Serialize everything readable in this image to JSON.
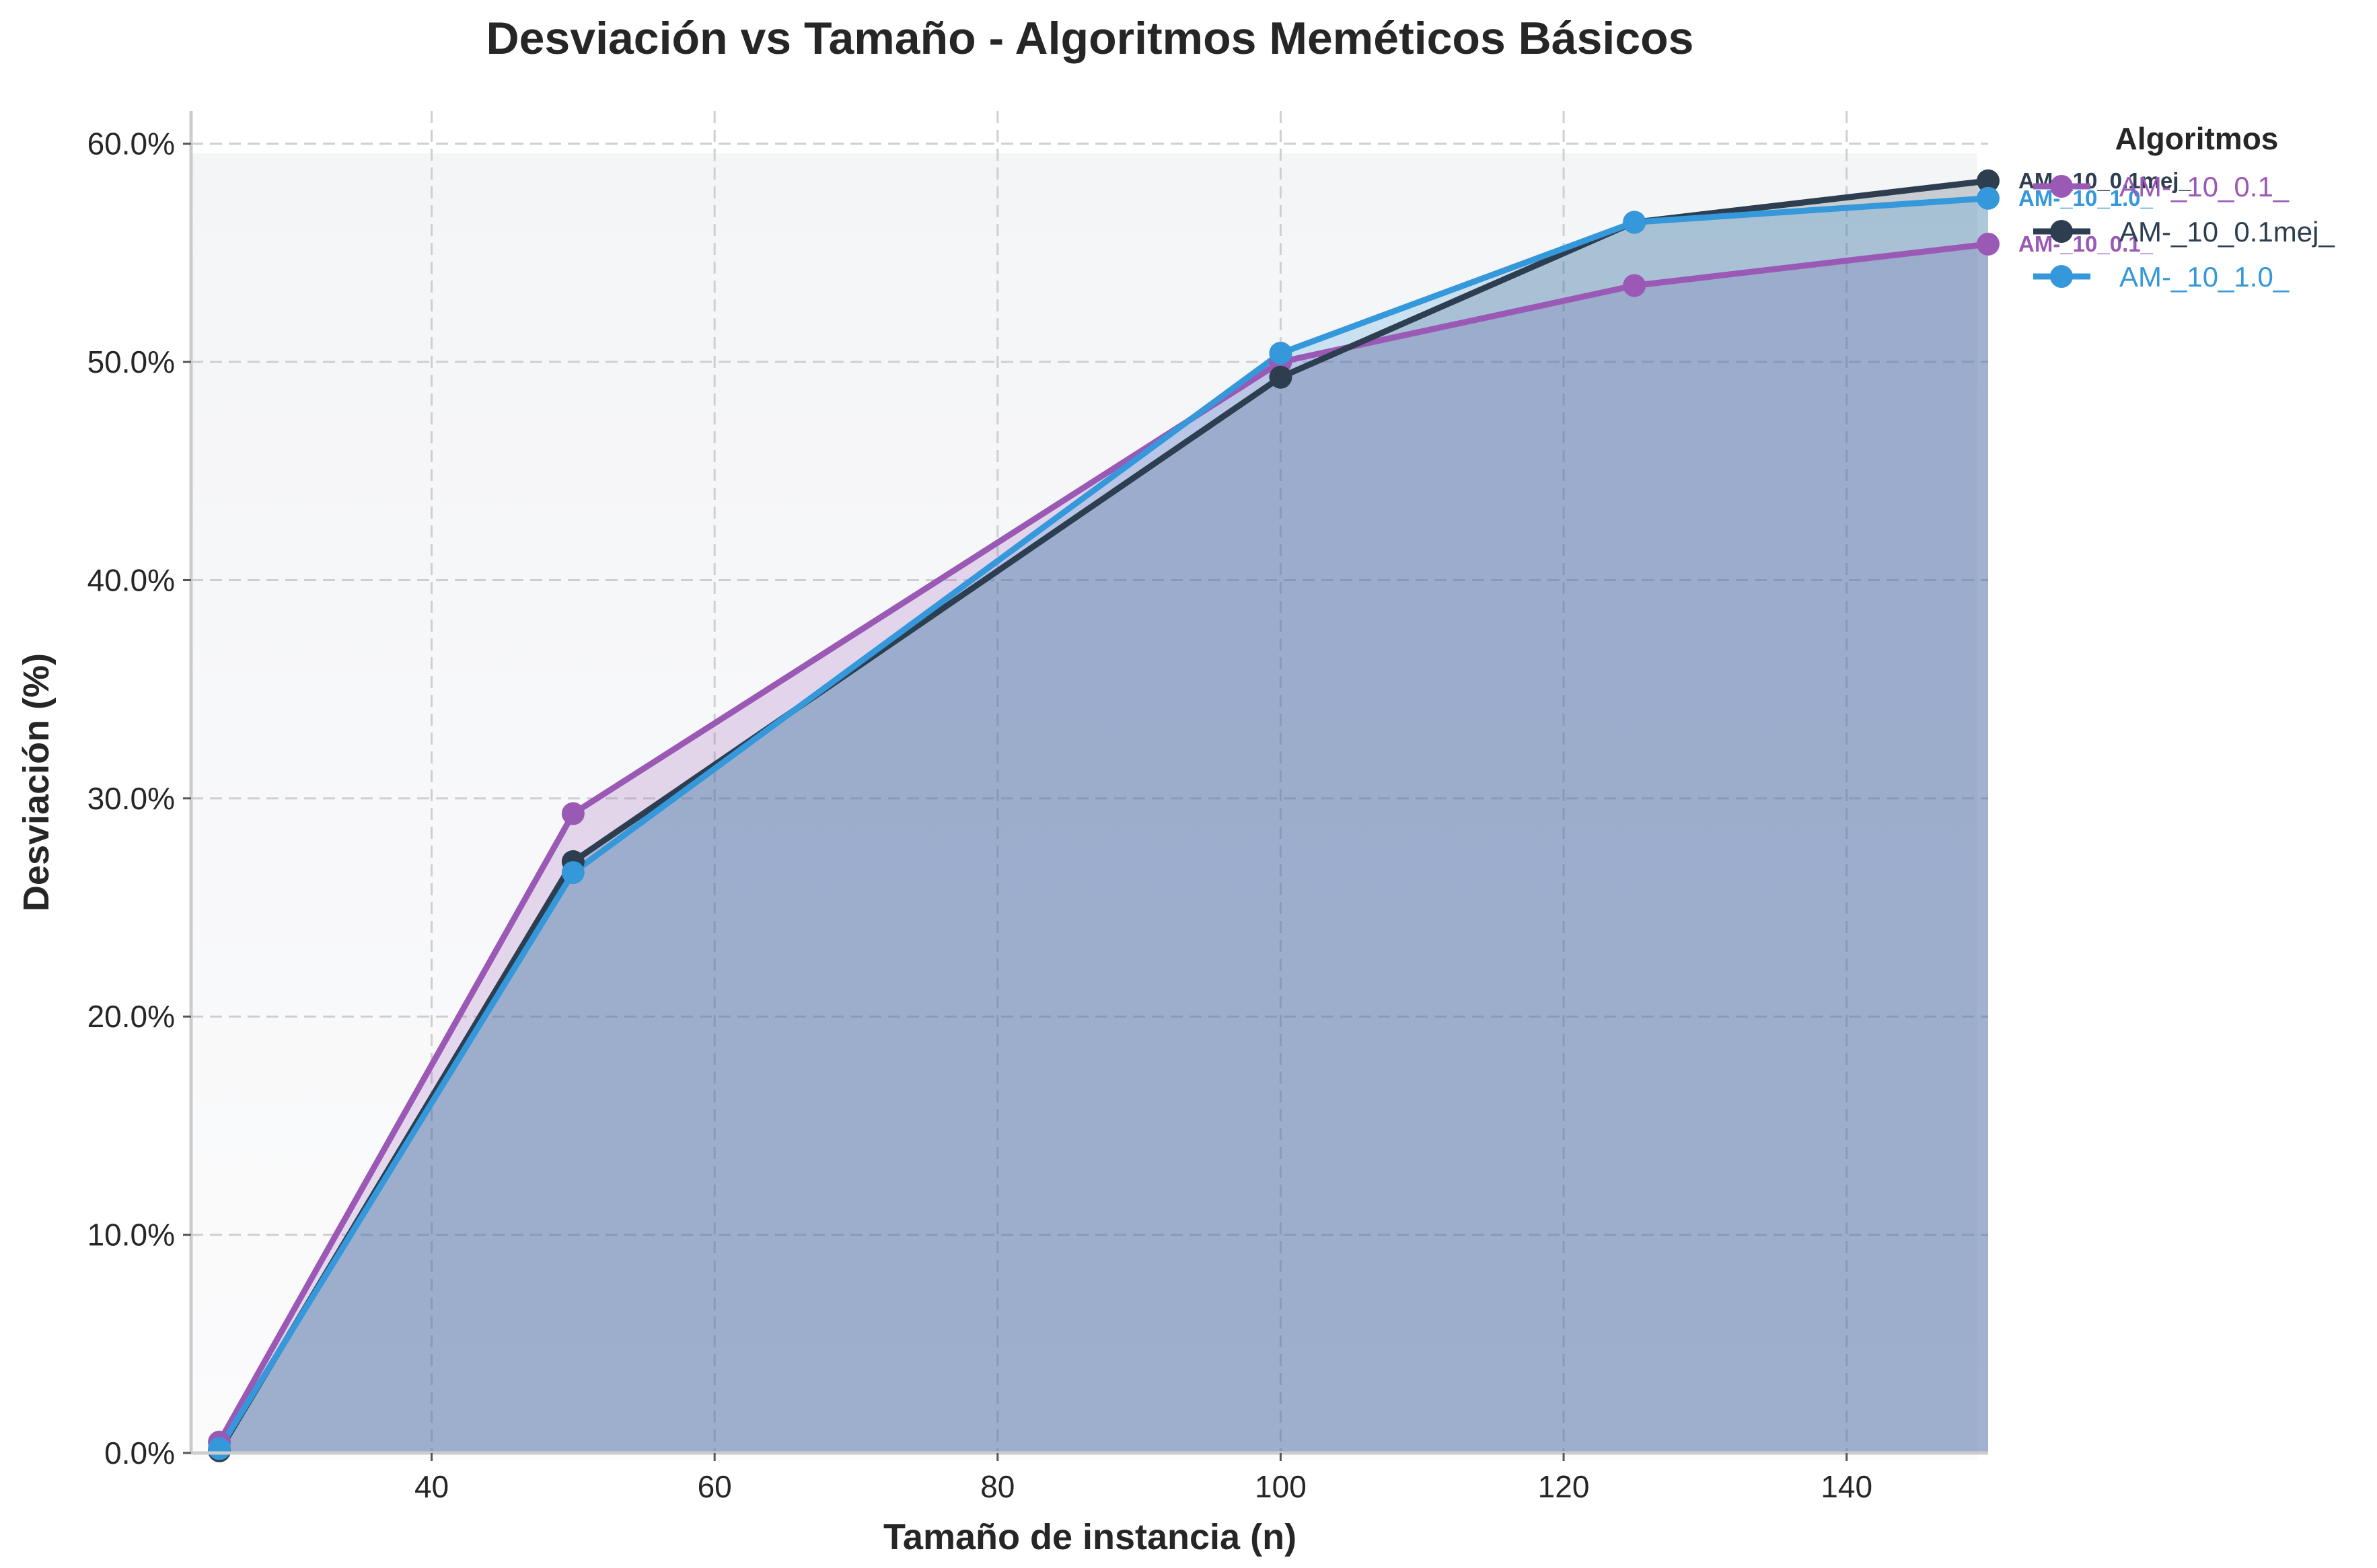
{
  "chart_data": {
    "type": "area",
    "title": "Desviación vs Tamaño - Algoritmos Meméticos Básicos",
    "xlabel": "Tamaño de instancia (n)",
    "ylabel": "Desviación (%)",
    "xlim": [
      23,
      150
    ],
    "ylim": [
      0,
      61.5
    ],
    "x_ticks": [
      40,
      60,
      80,
      100,
      120,
      140
    ],
    "x_tick_labels": [
      "40",
      "60",
      "80",
      "100",
      "120",
      "140"
    ],
    "y_ticks": [
      0,
      10,
      20,
      30,
      40,
      50,
      60
    ],
    "y_tick_labels": [
      "0.0%",
      "10.0%",
      "20.0%",
      "30.0%",
      "40.0%",
      "50.0%",
      "60.0%"
    ],
    "grid": true,
    "legend": {
      "title": "Algoritmos",
      "placement": "upper-right-outside"
    },
    "x": [
      25,
      50,
      100,
      125,
      150
    ],
    "series": [
      {
        "name": "AM-_10_0.1_",
        "color": "#9b59b6",
        "values": [
          0.5,
          29.3,
          50.0,
          53.5,
          55.4
        ],
        "end_label": "AM-_10_0.1_"
      },
      {
        "name": "AM-_10_0.1mej_",
        "color": "#2c3e50",
        "values": [
          0.1,
          27.1,
          49.3,
          56.4,
          58.3
        ],
        "end_label": "AM-_10_0.1mej_"
      },
      {
        "name": "AM-_10_1.0_",
        "color": "#3498db",
        "values": [
          0.2,
          26.6,
          50.4,
          56.4,
          57.5
        ],
        "end_label": "AM-_10_1.0_"
      }
    ]
  }
}
